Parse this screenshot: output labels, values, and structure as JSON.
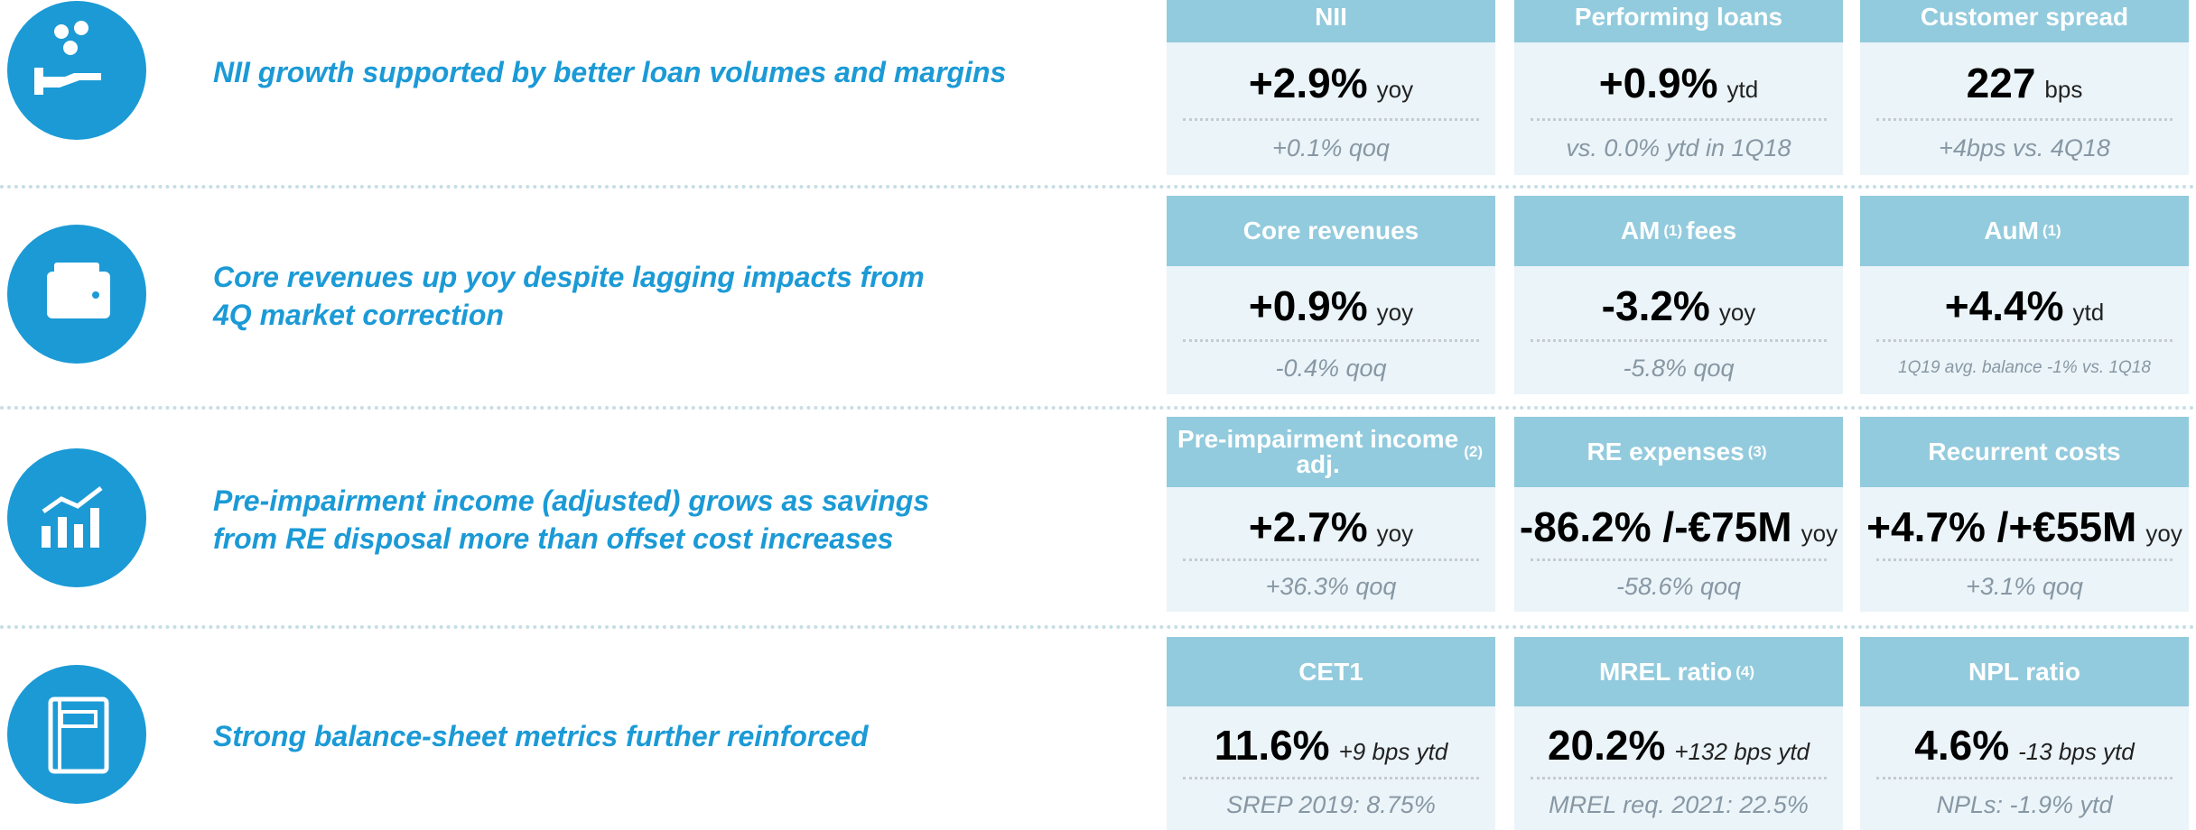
{
  "rows": [
    {
      "headline": [
        "NII growth supported by better loan volumes and margins"
      ],
      "cards": [
        {
          "title": "NII",
          "value": "+2.9%",
          "unit": "yoy",
          "sub": "+0.1% qoq"
        },
        {
          "title": "Performing loans",
          "value": "+0.9%",
          "unit": "ytd",
          "sub": "vs. 0.0% ytd in 1Q18"
        },
        {
          "title": "Customer spread",
          "value": "227",
          "unit": "bps",
          "sub": "+4bps vs. 4Q18"
        }
      ]
    },
    {
      "headline": [
        "Core revenues up yoy despite lagging impacts from",
        "4Q market correction"
      ],
      "cards": [
        {
          "title": "Core revenues",
          "value": "+0.9%",
          "unit": "yoy",
          "sub": "-0.4% qoq"
        },
        {
          "title": "AM",
          "note": "(1)",
          "title_end": "fees",
          "value": "-3.2%",
          "unit": "yoy",
          "sub": "-5.8% qoq"
        },
        {
          "title": "AuM",
          "note": "(1)",
          "value": "+4.4%",
          "unit": "ytd",
          "sub": "1Q19 avg. balance -1% vs. 1Q18"
        }
      ]
    },
    {
      "headline": [
        "Pre-impairment income (adjusted) grows as savings",
        "from RE disposal more than offset cost increases"
      ],
      "cards": [
        {
          "title": "Pre-impairment income adj.",
          "note": "(2)",
          "value": "+2.7%",
          "unit": "yoy",
          "sub": "+36.3% qoq"
        },
        {
          "title": "RE expenses",
          "note": "(3)",
          "value": "-86.2% /-€75M",
          "unit": "yoy",
          "sub": "-58.6% qoq"
        },
        {
          "title": "Recurrent costs",
          "value": "+4.7% /+€55M",
          "unit": "yoy",
          "sub": "+3.1% qoq"
        }
      ]
    },
    {
      "headline": [
        "Strong balance-sheet metrics further reinforced"
      ],
      "cards": [
        {
          "title": "CET1",
          "value": "11.6%",
          "unit": "+9 bps ytd",
          "sub": "SREP 2019: 8.75%"
        },
        {
          "title": "MREL ratio",
          "note": "(4)",
          "value": "20.2%",
          "unit": "+132 bps ytd",
          "sub": "MREL req. 2021: 22.5%"
        },
        {
          "title": "NPL ratio",
          "value": "4.6%",
          "unit": "-13 bps ytd",
          "sub": "NPLs: -1.9% ytd"
        }
      ]
    }
  ]
}
